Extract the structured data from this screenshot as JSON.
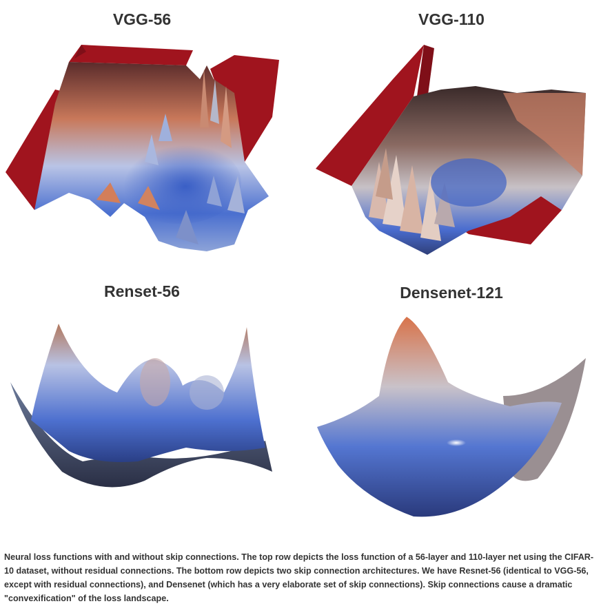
{
  "figure": {
    "panels": [
      {
        "title": "VGG-56"
      },
      {
        "title": "VGG-110"
      },
      {
        "title": "Renset-56"
      },
      {
        "title": "Densenet-121"
      }
    ],
    "caption": "Neural loss functions with and without skip connections. The top row depicts the loss function of a 56-layer and 110-layer net using the CIFAR-10 dataset, without residual connections. The bottom row depicts two skip connection architectures. We have Resnet-56 (identical to VGG-56, except with residual connections), and Densenet (which has a very elaborate set of skip connections). Skip connections cause a dramatic \"convexification\" of the loss landscape.",
    "colors": {
      "plateau_red": "#a0141e",
      "high_orange": "#d77a55",
      "mid_white": "#e8e4e4",
      "low_blue": "#3f63c4",
      "deep_navy": "#1c2a55"
    }
  }
}
